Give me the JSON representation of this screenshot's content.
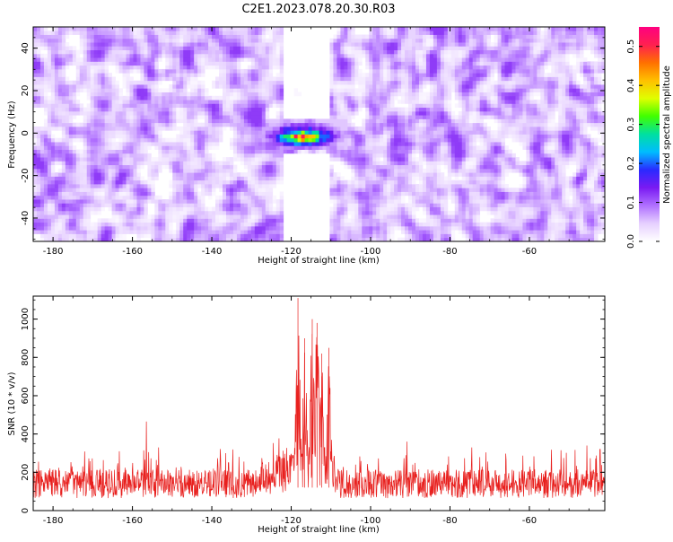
{
  "title": "C2E1.2023.078.20.30.R03",
  "chart_data": [
    {
      "type": "heatmap",
      "xlabel": "Height of straight line (km)",
      "ylabel": "Frequency (Hz)",
      "xlim": [
        -185,
        -41
      ],
      "ylim": [
        -51,
        50
      ],
      "x_ticks": [
        -180,
        -160,
        -140,
        -120,
        -100,
        -80,
        -60
      ],
      "y_ticks": [
        -40,
        -20,
        0,
        20,
        40
      ],
      "colorbar": {
        "label": "Normalized spectral amplitude",
        "range": [
          0.0,
          0.55
        ],
        "ticks": [
          0.0,
          0.1,
          0.2,
          0.3,
          0.4,
          0.5
        ],
        "colors": [
          "#ffffff",
          "#e6d0ff",
          "#b070ff",
          "#7a1af2",
          "#2a2aff",
          "#00bcff",
          "#00e0a0",
          "#40ff00",
          "#e0ff00",
          "#ffc000",
          "#ff7000",
          "#ff2050",
          "#ff0080"
        ]
      },
      "background_level": {
        "typical": 0.06,
        "max": 0.12
      },
      "gap_regions": [
        {
          "x": [
            -122,
            -110
          ],
          "y": [
            -51,
            -9
          ]
        },
        {
          "x": [
            -122,
            -110
          ],
          "y": [
            7,
            50
          ]
        }
      ],
      "signal_region": {
        "x": [
          -128,
          -106
        ],
        "y": [
          -8,
          6
        ],
        "peak_x": -117,
        "peak_y": -2,
        "peak_value": 0.45
      }
    },
    {
      "type": "line",
      "xlabel": "Height of straight line (km)",
      "ylabel": "SNR (10 * v/v)",
      "xlim": [
        -185,
        -41
      ],
      "ylim": [
        0,
        1120
      ],
      "x_ticks": [
        -180,
        -160,
        -140,
        -120,
        -100,
        -80,
        -60
      ],
      "y_ticks": [
        0,
        200,
        400,
        600,
        800,
        1000
      ],
      "color": "#e8201e",
      "noise_floor": {
        "typical": 140,
        "range": [
          50,
          330
        ]
      },
      "spikes": [
        {
          "x": -156.5,
          "y": 465
        },
        {
          "x": -135.8,
          "y": 250
        },
        {
          "x": -90.8,
          "y": 360
        },
        {
          "x": -74.5,
          "y": 330
        },
        {
          "x": -45.5,
          "y": 340
        },
        {
          "x": -42.2,
          "y": 320
        }
      ],
      "signal_region": {
        "x": [
          -121,
          -109
        ],
        "peaks": [
          {
            "x": -118.3,
            "y": 1110
          },
          {
            "x": -116.6,
            "y": 900
          },
          {
            "x": -114.7,
            "y": 1000
          },
          {
            "x": -113.5,
            "y": 980
          },
          {
            "x": -112.3,
            "y": 820
          },
          {
            "x": -110.5,
            "y": 850
          }
        ],
        "floor": 120
      }
    }
  ]
}
